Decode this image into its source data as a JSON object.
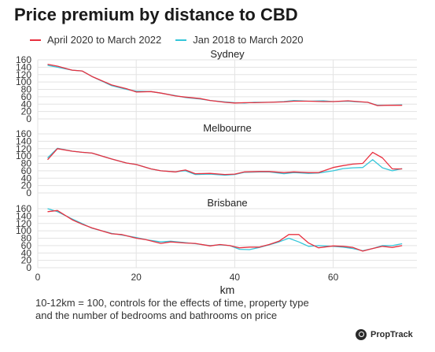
{
  "header": {
    "title": "Price premium by distance to CBD"
  },
  "footnote": {
    "line1": "10-12km = 100, controls for the effects of time, property type",
    "line2": "and the number of bedrooms and bathrooms on price"
  },
  "logo": {
    "text": "PropTrack",
    "icon": "proptrack-logo-icon"
  },
  "chart_data": {
    "type": "line",
    "xlabel": "km",
    "xlim": [
      0,
      77
    ],
    "xticks": [
      0,
      20,
      40,
      60
    ],
    "ylim": [
      0,
      160
    ],
    "yticks": [
      0,
      20,
      40,
      60,
      80,
      100,
      120,
      140,
      160
    ],
    "grid": true,
    "legend_position": "top",
    "series_meta": [
      {
        "name": "April 2020 to March 2022",
        "color": "#e8303f"
      },
      {
        "name": "Jan 2018 to March 2020",
        "color": "#35c6d9"
      }
    ],
    "panels": [
      {
        "title": "Sydney",
        "x": [
          2,
          4,
          7,
          9,
          11,
          15,
          18,
          20,
          23,
          25,
          28,
          30,
          33,
          35,
          38,
          40,
          42,
          44,
          47,
          50,
          52,
          55,
          58,
          60,
          63,
          65,
          67,
          69,
          71,
          74
        ],
        "series": [
          {
            "name": "April 2020 to March 2022",
            "values": [
              148,
              143,
              132,
              130,
              115,
              92,
              82,
              73,
              74,
              70,
              62,
              59,
              55,
              50,
              45,
              43,
              44,
              44,
              45,
              46,
              48,
              48,
              47,
              47,
              49,
              47,
              45,
              36,
              37,
              37
            ]
          },
          {
            "name": "Jan 2018 to March 2020",
            "values": [
              145,
              140,
              132,
              130,
              115,
              90,
              80,
              75,
              74,
              70,
              63,
              58,
              54,
              50,
              46,
              44,
              43,
              45,
              45,
              47,
              50,
              48,
              49,
              47,
              48,
              46,
              45,
              37,
              37,
              38
            ]
          }
        ]
      },
      {
        "title": "Melbourne",
        "x": [
          2,
          4,
          7,
          9,
          11,
          15,
          18,
          20,
          23,
          25,
          28,
          29,
          30,
          32,
          35,
          38,
          40,
          42,
          45,
          47,
          50,
          52,
          55,
          57,
          60,
          62,
          64,
          66,
          68,
          70,
          72,
          74
        ],
        "series": [
          {
            "name": "April 2020 to March 2022",
            "values": [
              90,
              120,
              113,
              110,
              108,
              92,
              81,
              77,
              65,
              60,
              57,
              60,
              62,
              52,
              53,
              50,
              51,
              57,
              58,
              58,
              55,
              57,
              55,
              55,
              69,
              74,
              78,
              80,
              110,
              95,
              65,
              65
            ]
          },
          {
            "name": "Jan 2018 to March 2020",
            "values": [
              95,
              121,
              113,
              110,
              108,
              92,
              81,
              77,
              65,
              60,
              57,
              59,
              60,
              50,
              51,
              48,
              50,
              56,
              57,
              57,
              52,
              55,
              53,
              54,
              60,
              66,
              68,
              69,
              90,
              68,
              60,
              66
            ]
          }
        ]
      },
      {
        "title": "Brisbane",
        "x": [
          2,
          4,
          7,
          9,
          11,
          15,
          17,
          20,
          22,
          25,
          27,
          30,
          32,
          35,
          37,
          39,
          41,
          43,
          45,
          47,
          49,
          51,
          53,
          55,
          57,
          60,
          62,
          64,
          66,
          68,
          70,
          72,
          74
        ],
        "series": [
          {
            "name": "April 2020 to March 2022",
            "values": [
              152,
              155,
              130,
              118,
              108,
              92,
              90,
              80,
              76,
              66,
              70,
              67,
              66,
              59,
              63,
              60,
              54,
              56,
              56,
              63,
              72,
              90,
              90,
              67,
              54,
              59,
              58,
              55,
              45,
              52,
              58,
              55,
              60
            ]
          },
          {
            "name": "Jan 2018 to March 2020",
            "values": [
              160,
              152,
              132,
              120,
              107,
              93,
              89,
              82,
              76,
              70,
              72,
              68,
              65,
              60,
              62,
              60,
              50,
              49,
              55,
              62,
              70,
              80,
              70,
              58,
              60,
              58,
              56,
              52,
              46,
              52,
              60,
              60,
              65
            ]
          }
        ]
      }
    ]
  }
}
